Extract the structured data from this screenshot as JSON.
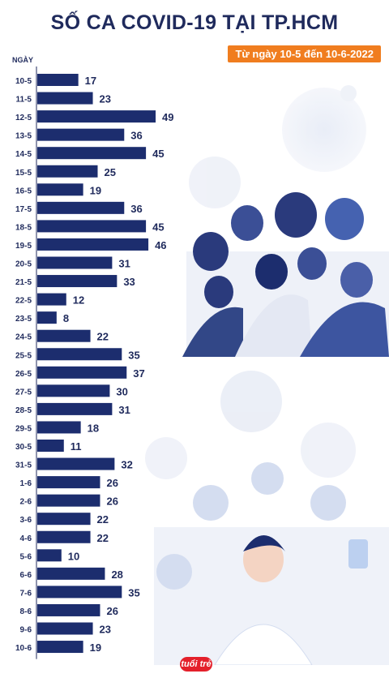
{
  "header": {
    "title": "SỐ CA COVID-19 TẠI TP.HCM",
    "subtitle": "Từ ngày 10-5 đến 10-6-2022"
  },
  "logo": {
    "text": "tuổi trẻ"
  },
  "colors": {
    "bar": "#1c2d6e",
    "accent": "#f07d1f",
    "text": "#1f2a5c"
  },
  "chart_data": {
    "type": "bar",
    "orientation": "horizontal",
    "axis_label": "NGÀY",
    "categories": [
      "10-5",
      "11-5",
      "12-5",
      "13-5",
      "14-5",
      "15-5",
      "16-5",
      "17-5",
      "18-5",
      "19-5",
      "20-5",
      "21-5",
      "22-5",
      "23-5",
      "24-5",
      "25-5",
      "26-5",
      "27-5",
      "28-5",
      "29-5",
      "30-5",
      "31-5",
      "1-6",
      "2-6",
      "3-6",
      "4-6",
      "5-6",
      "6-6",
      "7-6",
      "8-6",
      "9-6",
      "10-6"
    ],
    "values": [
      17,
      23,
      49,
      36,
      45,
      25,
      19,
      36,
      45,
      46,
      31,
      33,
      12,
      8,
      22,
      35,
      37,
      30,
      31,
      18,
      11,
      32,
      26,
      26,
      22,
      22,
      10,
      28,
      35,
      26,
      23,
      19
    ],
    "xlim": [
      0,
      50
    ],
    "grid": false,
    "legend": "none"
  }
}
